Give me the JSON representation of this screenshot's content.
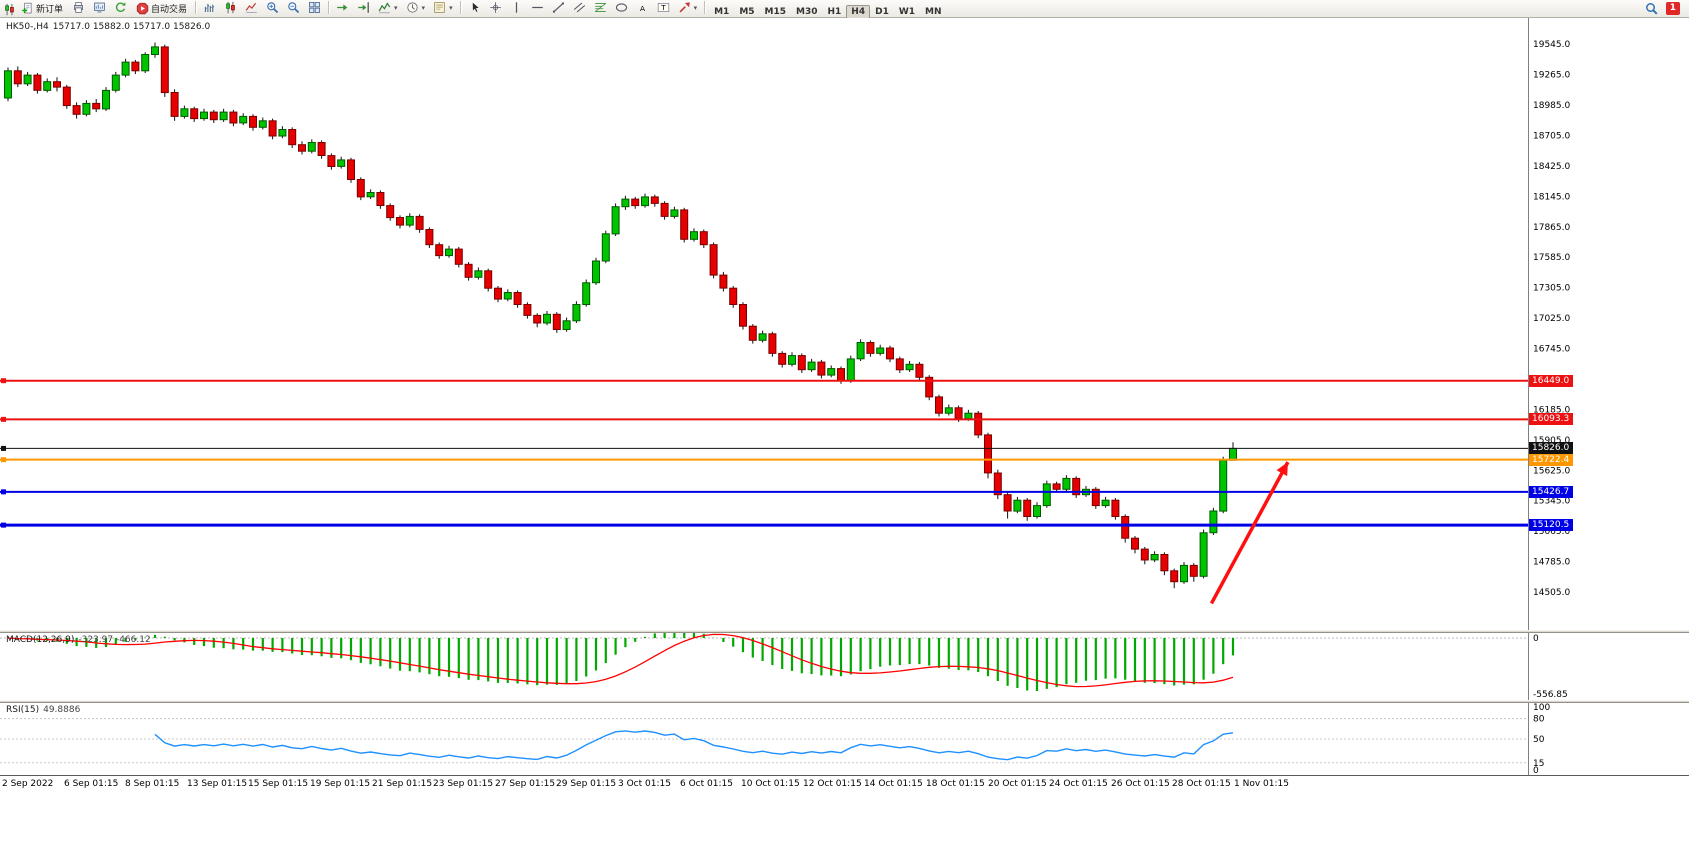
{
  "toolbar": {
    "new_order_label": "新订单",
    "auto_trading_label": "自动交易",
    "timeframes": [
      "M1",
      "M5",
      "M15",
      "M30",
      "H1",
      "H4",
      "D1",
      "W1",
      "MN"
    ],
    "active_timeframe": "H4",
    "notification_count": "1",
    "icon_groups": [
      [
        "print",
        "chart-window",
        "refresh"
      ],
      [
        "bar-chart",
        "candlestick-chart",
        "line-chart",
        "zoom-in",
        "zoom-out",
        "tile-windows"
      ],
      [
        "auto-scroll",
        "chart-shift",
        "indicators",
        "period",
        "templates"
      ],
      [
        "cursor",
        "crosshair",
        "vertical-line",
        "horizontal-line",
        "trendline",
        "channel",
        "fibonacci",
        "shapes",
        "text",
        "text-label",
        "arrows"
      ]
    ]
  },
  "chart": {
    "symbol_period": "HK50-,H4",
    "ohlc": "15717.0 15882.0 15717.0 15826.0"
  },
  "chart_data": {
    "type": "candlestick",
    "symbol": "HK50-",
    "period": "H4",
    "current_bar": {
      "open": 15717.0,
      "high": 15882.0,
      "low": 15717.0,
      "close": 15826.0
    },
    "y_axis": {
      "max": 19620,
      "min": 14450,
      "ticks": [
        19545,
        19265,
        18985,
        18705,
        18425,
        18145,
        17865,
        17585,
        17305,
        17025,
        16745,
        16465,
        16185,
        15905,
        15625,
        15345,
        15065,
        14785,
        14505
      ]
    },
    "x_labels": [
      "2 Sep 2022",
      "6 Sep 01:15",
      "8 Sep 01:15",
      "13 Sep 01:15",
      "15 Sep 01:15",
      "19 Sep 01:15",
      "21 Sep 01:15",
      "23 Sep 01:15",
      "27 Sep 01:15",
      "29 Sep 01:15",
      "3 Oct 01:15",
      "6 Oct 01:15",
      "10 Oct 01:15",
      "12 Oct 01:15",
      "14 Oct 01:15",
      "18 Oct 01:15",
      "20 Oct 01:15",
      "24 Oct 01:15",
      "26 Oct 01:15",
      "28 Oct 01:15",
      "1 Nov 01:15"
    ],
    "candles": [
      [
        19050,
        19330,
        19020,
        19300
      ],
      [
        19300,
        19340,
        19150,
        19180
      ],
      [
        19180,
        19290,
        19160,
        19260
      ],
      [
        19260,
        19280,
        19090,
        19120
      ],
      [
        19120,
        19230,
        19100,
        19200
      ],
      [
        19200,
        19240,
        19110,
        19150
      ],
      [
        19150,
        19170,
        18950,
        18980
      ],
      [
        18980,
        19010,
        18860,
        18900
      ],
      [
        18900,
        19030,
        18880,
        19000
      ],
      [
        19000,
        19040,
        18920,
        18950
      ],
      [
        18950,
        19150,
        18930,
        19120
      ],
      [
        19120,
        19290,
        19100,
        19260
      ],
      [
        19260,
        19410,
        19240,
        19380
      ],
      [
        19380,
        19400,
        19270,
        19300
      ],
      [
        19300,
        19470,
        19280,
        19450
      ],
      [
        19450,
        19560,
        19420,
        19520
      ],
      [
        19520,
        19540,
        19060,
        19100
      ],
      [
        19100,
        19130,
        18840,
        18880
      ],
      [
        18880,
        18980,
        18860,
        18950
      ],
      [
        18950,
        18970,
        18830,
        18860
      ],
      [
        18860,
        18950,
        18840,
        18920
      ],
      [
        18920,
        18940,
        18820,
        18850
      ],
      [
        18850,
        18950,
        18830,
        18920
      ],
      [
        18920,
        18940,
        18790,
        18820
      ],
      [
        18820,
        18910,
        18800,
        18880
      ],
      [
        18880,
        18900,
        18750,
        18780
      ],
      [
        18780,
        18870,
        18760,
        18840
      ],
      [
        18840,
        18860,
        18670,
        18700
      ],
      [
        18700,
        18790,
        18680,
        18760
      ],
      [
        18760,
        18780,
        18590,
        18620
      ],
      [
        18620,
        18650,
        18530,
        18560
      ],
      [
        18560,
        18670,
        18540,
        18640
      ],
      [
        18640,
        18660,
        18490,
        18520
      ],
      [
        18520,
        18540,
        18390,
        18420
      ],
      [
        18420,
        18510,
        18400,
        18480
      ],
      [
        18480,
        18500,
        18270,
        18300
      ],
      [
        18300,
        18320,
        18110,
        18140
      ],
      [
        18140,
        18210,
        18120,
        18180
      ],
      [
        18180,
        18200,
        18030,
        18060
      ],
      [
        18060,
        18080,
        17920,
        17950
      ],
      [
        17950,
        17970,
        17850,
        17880
      ],
      [
        17880,
        17990,
        17860,
        17960
      ],
      [
        17960,
        17980,
        17810,
        17840
      ],
      [
        17840,
        17860,
        17670,
        17700
      ],
      [
        17700,
        17720,
        17570,
        17600
      ],
      [
        17600,
        17690,
        17580,
        17660
      ],
      [
        17660,
        17680,
        17490,
        17520
      ],
      [
        17520,
        17540,
        17370,
        17400
      ],
      [
        17400,
        17490,
        17380,
        17460
      ],
      [
        17460,
        17480,
        17270,
        17300
      ],
      [
        17300,
        17320,
        17170,
        17200
      ],
      [
        17200,
        17290,
        17180,
        17260
      ],
      [
        17260,
        17280,
        17120,
        17150
      ],
      [
        17150,
        17170,
        17020,
        17050
      ],
      [
        17050,
        17070,
        16940,
        16980
      ],
      [
        16980,
        17090,
        16960,
        17060
      ],
      [
        17060,
        17080,
        16890,
        16920
      ],
      [
        16920,
        17030,
        16900,
        17000
      ],
      [
        17000,
        17180,
        16980,
        17150
      ],
      [
        17150,
        17380,
        17130,
        17350
      ],
      [
        17350,
        17580,
        17330,
        17550
      ],
      [
        17550,
        17830,
        17530,
        17800
      ],
      [
        17800,
        18080,
        17780,
        18050
      ],
      [
        18050,
        18150,
        18020,
        18120
      ],
      [
        18120,
        18140,
        18030,
        18060
      ],
      [
        18060,
        18170,
        18040,
        18140
      ],
      [
        18140,
        18160,
        18050,
        18080
      ],
      [
        18080,
        18100,
        17930,
        17960
      ],
      [
        17960,
        18050,
        17940,
        18020
      ],
      [
        18020,
        18040,
        17720,
        17750
      ],
      [
        17750,
        17850,
        17730,
        17820
      ],
      [
        17820,
        17840,
        17670,
        17700
      ],
      [
        17700,
        17720,
        17390,
        17420
      ],
      [
        17420,
        17450,
        17270,
        17300
      ],
      [
        17300,
        17320,
        17120,
        17150
      ],
      [
        17150,
        17170,
        16920,
        16950
      ],
      [
        16950,
        16970,
        16790,
        16820
      ],
      [
        16820,
        16910,
        16800,
        16880
      ],
      [
        16880,
        16900,
        16670,
        16700
      ],
      [
        16700,
        16720,
        16570,
        16600
      ],
      [
        16600,
        16710,
        16580,
        16680
      ],
      [
        16680,
        16700,
        16520,
        16550
      ],
      [
        16550,
        16650,
        16530,
        16620
      ],
      [
        16620,
        16640,
        16470,
        16500
      ],
      [
        16500,
        16590,
        16480,
        16560
      ],
      [
        16560,
        16580,
        16420,
        16450
      ],
      [
        16450,
        16680,
        16430,
        16650
      ],
      [
        16650,
        16830,
        16630,
        16800
      ],
      [
        16800,
        16820,
        16670,
        16700
      ],
      [
        16700,
        16780,
        16680,
        16750
      ],
      [
        16750,
        16770,
        16620,
        16650
      ],
      [
        16650,
        16670,
        16520,
        16550
      ],
      [
        16550,
        16630,
        16530,
        16600
      ],
      [
        16600,
        16620,
        16450,
        16480
      ],
      [
        16480,
        16500,
        16270,
        16300
      ],
      [
        16300,
        16320,
        16120,
        16150
      ],
      [
        16150,
        16230,
        16130,
        16200
      ],
      [
        16200,
        16220,
        16070,
        16100
      ],
      [
        16100,
        16180,
        16080,
        16150
      ],
      [
        16150,
        16170,
        15920,
        15950
      ],
      [
        15950,
        15970,
        15550,
        15600
      ],
      [
        15600,
        15630,
        15360,
        15400
      ],
      [
        15400,
        15420,
        15180,
        15250
      ],
      [
        15250,
        15380,
        15230,
        15350
      ],
      [
        15350,
        15370,
        15160,
        15200
      ],
      [
        15200,
        15330,
        15180,
        15300
      ],
      [
        15300,
        15530,
        15280,
        15500
      ],
      [
        15500,
        15520,
        15420,
        15450
      ],
      [
        15450,
        15580,
        15430,
        15550
      ],
      [
        15550,
        15570,
        15370,
        15400
      ],
      [
        15400,
        15480,
        15380,
        15450
      ],
      [
        15450,
        15470,
        15270,
        15300
      ],
      [
        15300,
        15380,
        15280,
        15350
      ],
      [
        15350,
        15370,
        15170,
        15200
      ],
      [
        15200,
        15220,
        14960,
        15000
      ],
      [
        15000,
        15020,
        14860,
        14900
      ],
      [
        14900,
        14920,
        14760,
        14800
      ],
      [
        14800,
        14880,
        14780,
        14850
      ],
      [
        14850,
        14870,
        14660,
        14700
      ],
      [
        14700,
        14720,
        14540,
        14600
      ],
      [
        14600,
        14780,
        14580,
        14750
      ],
      [
        14750,
        14770,
        14600,
        14650
      ],
      [
        14650,
        15080,
        14630,
        15050
      ],
      [
        15050,
        15280,
        15030,
        15250
      ],
      [
        15250,
        15750,
        15230,
        15717
      ],
      [
        15717,
        15882,
        15717,
        15826
      ]
    ],
    "horizontal_lines": [
      {
        "price": 16449.0,
        "label": "16449.0",
        "color": "#ee1111",
        "width": 2
      },
      {
        "price": 16093.3,
        "label": "16093.3",
        "color": "#ee1111",
        "width": 2
      },
      {
        "price": 15826.0,
        "label": "15826.0",
        "color": "#111111",
        "width": 1
      },
      {
        "price": 15722.4,
        "label": "15722.4",
        "color": "#ff9800",
        "width": 2
      },
      {
        "price": 15426.7,
        "label": "15426.7",
        "color": "#0000e6",
        "width": 2
      },
      {
        "price": 15120.5,
        "label": "15120.5",
        "color": "#0000e6",
        "width": 3
      }
    ],
    "annotations": [
      {
        "type": "arrow",
        "from_index": 122.8,
        "from_price": 14400,
        "to_index": 130.6,
        "to_price": 15700,
        "color": "#ff0f0f",
        "width": 3.5
      }
    ],
    "colors": {
      "up": "#00c400",
      "down": "#e60000",
      "wick": "#111111"
    },
    "indicators": [
      {
        "name": "MACD",
        "title": "MACD(12,26,9)",
        "values": "-323.97 -466.12",
        "params": [
          12,
          26,
          9
        ],
        "axis_labels": [
          "0",
          "-556.85"
        ],
        "histogram_color": "#00a800",
        "signal_color": "#ff0000"
      },
      {
        "name": "RSI",
        "title": "RSI(15)",
        "values": "49.8886",
        "params": [
          15
        ],
        "axis_labels": [
          "100",
          "80",
          "50",
          "15",
          "0"
        ],
        "levels": [
          80,
          50,
          15
        ],
        "line_color": "#1e90ff"
      }
    ]
  }
}
